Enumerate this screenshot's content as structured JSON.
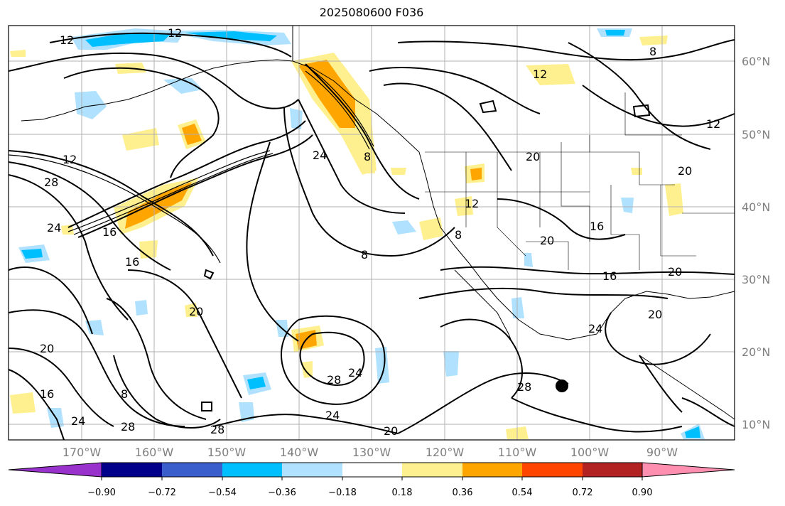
{
  "title": "2025080600 F036",
  "lat_labels": [
    "60°N",
    "50°N",
    "40°N",
    "30°N",
    "20°N",
    "10°N"
  ],
  "lon_labels": [
    "170°W",
    "160°W",
    "150°W",
    "140°W",
    "130°W",
    "120°W",
    "110°W",
    "100°W",
    "90°W"
  ],
  "colorbar": {
    "colors": [
      "#9932cc",
      "#00008b",
      "#3a5fcd",
      "#00bfff",
      "#b0e2ff",
      "#ffffff",
      "#fff08f",
      "#ffa500",
      "#ff4500",
      "#b22222",
      "#ff8fb0"
    ],
    "tick_labels": [
      "−0.90",
      "−0.72",
      "−0.54",
      "−0.36",
      "−0.18",
      "0.18",
      "0.36",
      "0.54",
      "0.72",
      "0.90"
    ]
  },
  "contour_labels": [
    "12",
    "12",
    "12",
    "8",
    "8",
    "28",
    "24",
    "16",
    "16",
    "20",
    "20",
    "20",
    "24",
    "8",
    "8",
    "24",
    "12",
    "12",
    "16",
    "20",
    "16",
    "20",
    "20",
    "20",
    "28",
    "24",
    "28",
    "24",
    "28",
    "20",
    "28",
    "16",
    "24",
    "12",
    "8"
  ]
}
